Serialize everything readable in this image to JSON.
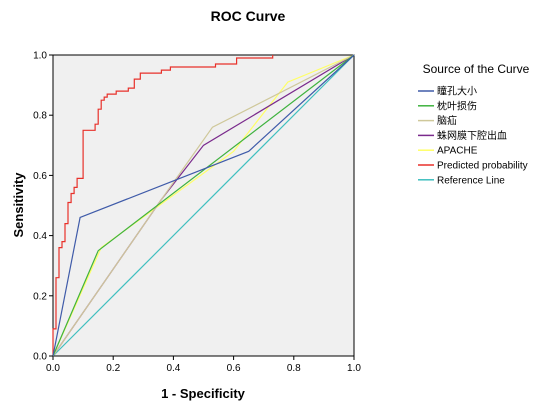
{
  "chart_data": {
    "type": "line",
    "title": "ROC Curve",
    "xlabel": "1 - Specificity",
    "ylabel": "Sensitivity",
    "xlim": [
      0,
      1
    ],
    "ylim": [
      0,
      1
    ],
    "xticks": [
      "0.0",
      "0.2",
      "0.4",
      "0.6",
      "0.8",
      "1.0"
    ],
    "yticks": [
      "0.0",
      "0.2",
      "0.4",
      "0.6",
      "0.8",
      "1.0"
    ],
    "grid": false,
    "plot_background": "#f0f0f0",
    "legend": {
      "title": "Source of the Curve",
      "position": "right"
    },
    "series": [
      {
        "name": "瞳孔大小",
        "color": "#3f5ba9",
        "points": [
          [
            0,
            0
          ],
          [
            0.09,
            0.46
          ],
          [
            0.65,
            0.68
          ],
          [
            1,
            1
          ]
        ]
      },
      {
        "name": "枕叶损伤",
        "color": "#3fb23f",
        "points": [
          [
            0,
            0
          ],
          [
            0.15,
            0.35
          ],
          [
            1,
            1
          ]
        ]
      },
      {
        "name": "脑疝",
        "color": "#cfc89a",
        "points": [
          [
            0,
            0
          ],
          [
            0.36,
            0.52
          ],
          [
            0.53,
            0.76
          ],
          [
            1,
            1
          ]
        ]
      },
      {
        "name": "蛛网膜下腔出血",
        "color": "#7a2a8c",
        "points": [
          [
            0,
            0
          ],
          [
            0.36,
            0.52
          ],
          [
            0.5,
            0.7
          ],
          [
            1,
            1
          ]
        ]
      },
      {
        "name": "APACHE",
        "color": "#ffff66",
        "points": [
          [
            0,
            0
          ],
          [
            0.16,
            0.36
          ],
          [
            0.6,
            0.68
          ],
          [
            0.78,
            0.91
          ],
          [
            1,
            1
          ]
        ]
      },
      {
        "name": "Predicted probability",
        "color": "#e8312a",
        "step": true,
        "points": [
          [
            0,
            0
          ],
          [
            0,
            0.09
          ],
          [
            0.01,
            0.09
          ],
          [
            0.01,
            0.26
          ],
          [
            0.02,
            0.26
          ],
          [
            0.02,
            0.36
          ],
          [
            0.03,
            0.36
          ],
          [
            0.03,
            0.38
          ],
          [
            0.04,
            0.38
          ],
          [
            0.04,
            0.44
          ],
          [
            0.05,
            0.44
          ],
          [
            0.05,
            0.51
          ],
          [
            0.06,
            0.51
          ],
          [
            0.06,
            0.54
          ],
          [
            0.07,
            0.54
          ],
          [
            0.07,
            0.56
          ],
          [
            0.08,
            0.56
          ],
          [
            0.08,
            0.59
          ],
          [
            0.1,
            0.59
          ],
          [
            0.1,
            0.75
          ],
          [
            0.14,
            0.75
          ],
          [
            0.14,
            0.77
          ],
          [
            0.15,
            0.77
          ],
          [
            0.15,
            0.82
          ],
          [
            0.16,
            0.82
          ],
          [
            0.16,
            0.85
          ],
          [
            0.17,
            0.85
          ],
          [
            0.17,
            0.86
          ],
          [
            0.18,
            0.86
          ],
          [
            0.18,
            0.87
          ],
          [
            0.21,
            0.87
          ],
          [
            0.21,
            0.88
          ],
          [
            0.25,
            0.88
          ],
          [
            0.25,
            0.89
          ],
          [
            0.27,
            0.89
          ],
          [
            0.27,
            0.92
          ],
          [
            0.29,
            0.92
          ],
          [
            0.29,
            0.94
          ],
          [
            0.36,
            0.94
          ],
          [
            0.36,
            0.95
          ],
          [
            0.39,
            0.95
          ],
          [
            0.39,
            0.96
          ],
          [
            0.54,
            0.96
          ],
          [
            0.54,
            0.97
          ],
          [
            0.61,
            0.97
          ],
          [
            0.61,
            0.99
          ],
          [
            0.73,
            0.99
          ],
          [
            0.73,
            1
          ]
        ]
      },
      {
        "name": "Reference Line",
        "color": "#3fbfbf",
        "points": [
          [
            0,
            0
          ],
          [
            1,
            1
          ]
        ]
      }
    ]
  }
}
